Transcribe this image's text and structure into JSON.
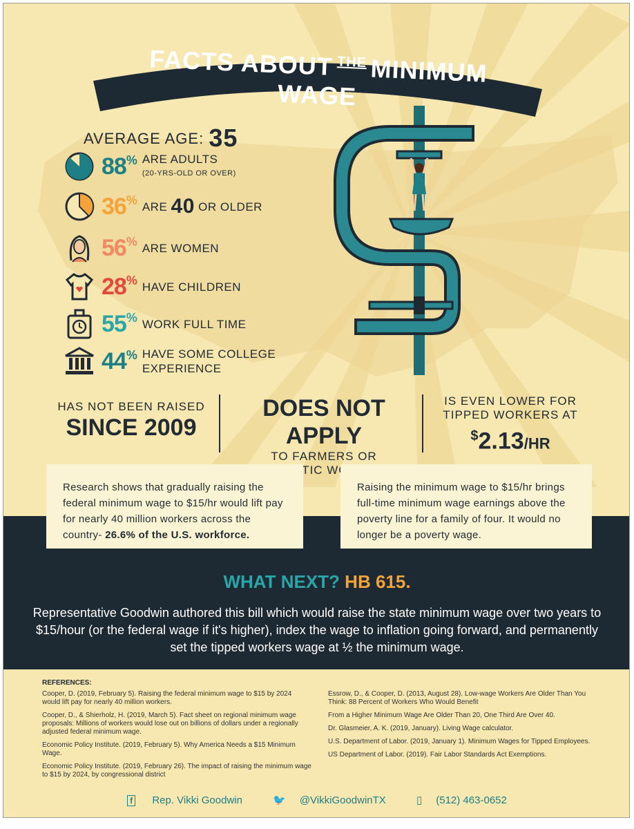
{
  "banner": {
    "title_part1": "FACTS ABOUT",
    "title_the": "THE",
    "title_part2": "MINIMUM WAGE"
  },
  "average_age": {
    "label": "AVERAGE AGE:",
    "value": "35"
  },
  "stats": [
    {
      "pct": "88",
      "label": "ARE ADULTS",
      "note": "(20-YRS-OLD OR OVER)",
      "icon": "pie-chart-icon",
      "color": "#1e7f85"
    },
    {
      "pct": "36",
      "label_pre": "ARE",
      "label_big": "40",
      "label_post": "OR OLDER",
      "icon": "pie-chart-icon",
      "color": "#f3a33a"
    },
    {
      "pct": "56",
      "label": "ARE WOMEN",
      "icon": "woman-icon",
      "color": "#ef8a62"
    },
    {
      "pct": "28",
      "label": "HAVE CHILDREN",
      "icon": "onesie-icon",
      "color": "#e2483b"
    },
    {
      "pct": "55",
      "label": "WORK FULL TIME",
      "icon": "time-clock-icon",
      "color": "#2aa6a8"
    },
    {
      "pct": "44",
      "label_line1": "HAVE SOME COLLEGE",
      "label_line2": "EXPERIENCE",
      "icon": "college-building-icon",
      "color": "#1e7f85"
    }
  ],
  "percent_sign": "%",
  "facts": {
    "raised_small": "HAS NOT BEEN RAISED",
    "raised_big": "SINCE 2009",
    "apply_big": "DOES NOT APPLY",
    "apply_small1": "TO FARMERS OR",
    "apply_small2": "DOMESTIC WORKERS",
    "tipped_small1": "IS EVEN LOWER FOR",
    "tipped_small2": "TIPPED WORKERS AT",
    "tipped_dollar": "$",
    "tipped_value": "2.13",
    "tipped_unit": "/HR"
  },
  "boxes": {
    "left_text": "Research shows that gradually raising the federal minimum wage to $15/hr would lift pay for nearly 40 million workers across the country-",
    "left_bold": "26.6% of the U.S. workforce.",
    "right_text": "Raising the minimum wage to $15/hr brings full-time minimum wage earnings above the poverty line for a family of four. It would no longer be a poverty wage."
  },
  "what_next": {
    "part1": "WHAT NEXT?",
    "part2": "HB 615."
  },
  "description": "Representative Goodwin authored this bill which would raise the state minimum wage over two years to $15/hour (or the federal wage if it's higher), index the wage to inflation going forward, and permanently set the tipped workers wage at ½ the minimum wage.",
  "references": {
    "title": "REFERENCES:",
    "left": [
      "Cooper, D. (2019, February 5). Raising the federal minimum wage to $15 by 2024 would lift pay for nearly 40 million workers.",
      "Cooper, D., & Shierholz, H. (2019, March 5). Fact sheet on regional minimum wage proposals: Millions of workers would lose out on billions of dollars under a regionally adjusted federal minimum wage.",
      "Economic Policy Institute. (2019, February 5). Why America Needs a $15 Minimum Wage.",
      "Economic Policy Institute. (2019, February 26). The impact of raising the minimum wage to $15 by 2024, by congressional district"
    ],
    "right": [
      "Essrow, D., & Cooper, D. (2013, August 28). Low-wage Workers Are Older Than You Think: 88 Percent of Workers Who Would Benefit",
      "From a Higher Minimum Wage Are Older Than 20, One Third Are Over 40.",
      "Dr. Glasmeier, A. K. (2019, January). Living Wage calculator.",
      "U.S. Department of Labor. (2019, January 1). Minimum Wages for Tipped Employees.",
      "US Department of Labor. (2019). Fair Labor Standards Act Exemptions."
    ]
  },
  "footer": {
    "facebook": "Rep. Vikki Goodwin",
    "twitter": "@VikkiGoodwinTX",
    "phone": "(512) 463-0652"
  }
}
